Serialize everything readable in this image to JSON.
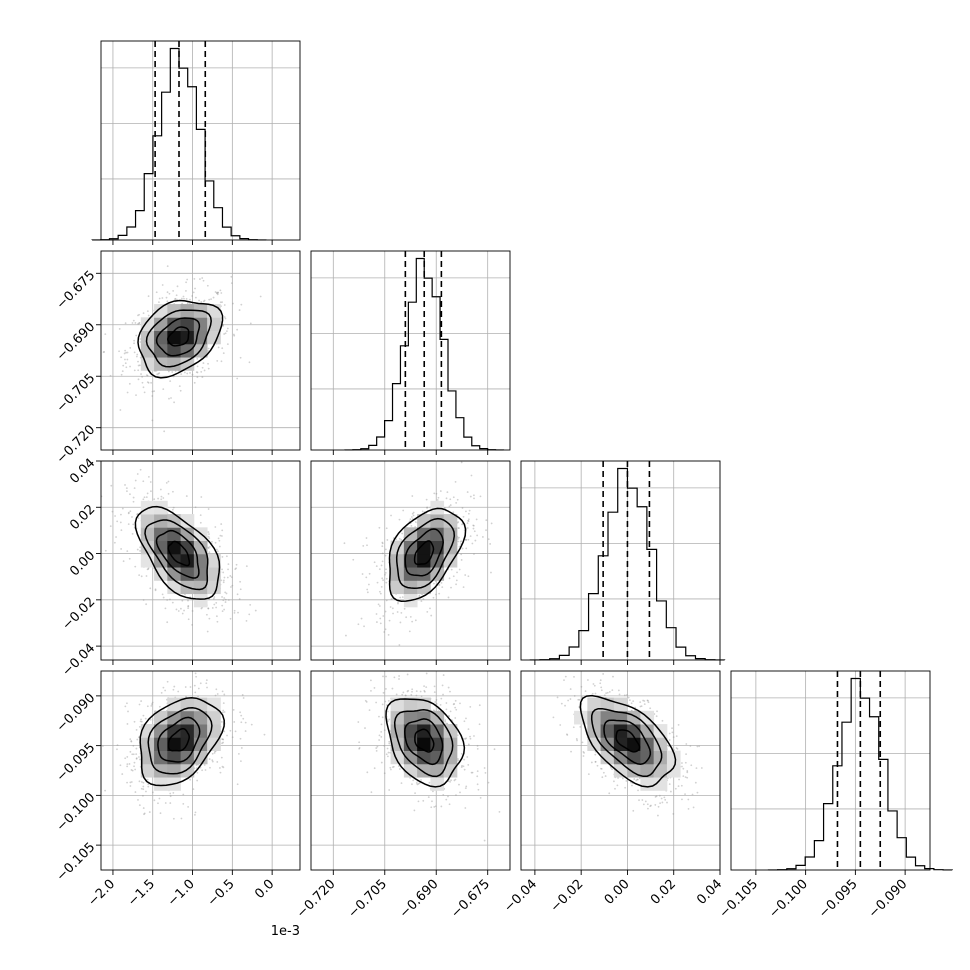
{
  "chart_data": {
    "type": "corner",
    "title": "",
    "offset_label": "1e-3",
    "grid": true,
    "parameters": [
      {
        "label": "",
        "range": [
          -2.15,
          0.35
        ],
        "ticks": [
          -2.0,
          -1.5,
          -1.0,
          -0.5,
          0.0
        ],
        "tick_labels": [
          "−2.0",
          "−1.5",
          "−1.0",
          "−0.5",
          "0.0"
        ],
        "mean": -1.17,
        "sd": 0.26,
        "quantiles": [
          -1.47,
          -1.17,
          -0.84
        ]
      },
      {
        "label": "",
        "range": [
          -0.7265,
          -0.6685
        ],
        "ticks": [
          -0.72,
          -0.705,
          -0.69,
          -0.675
        ],
        "tick_labels": [
          "−0.720",
          "−0.705",
          "−0.690",
          "−0.675"
        ],
        "mean": -0.6935,
        "sd": 0.0055,
        "quantiles": [
          -0.699,
          -0.6935,
          -0.6885
        ]
      },
      {
        "label": "",
        "range": [
          -0.046,
          0.04
        ],
        "ticks": [
          -0.04,
          -0.02,
          0.0,
          0.02,
          0.04
        ],
        "tick_labels": [
          "−0.04",
          "−0.02",
          "0.00",
          "0.02",
          "0.04"
        ],
        "mean": 0.0,
        "sd": 0.01,
        "quantiles": [
          -0.0105,
          0.0,
          0.0095
        ]
      },
      {
        "label": "",
        "range": [
          -0.1075,
          -0.0875
        ],
        "ticks": [
          -0.105,
          -0.1,
          -0.095,
          -0.09
        ],
        "tick_labels": [
          "−0.105",
          "−0.100",
          "−0.095",
          "−0.090"
        ],
        "mean": -0.0945,
        "sd": 0.0022,
        "quantiles": [
          -0.0968,
          -0.0945,
          -0.0925
        ]
      }
    ],
    "correlations": [
      [
        1.0,
        0.3,
        -0.55,
        0.35
      ],
      [
        0.3,
        1.0,
        0.45,
        -0.3
      ],
      [
        -0.55,
        0.45,
        1.0,
        -0.55
      ],
      [
        0.35,
        -0.3,
        -0.55,
        1.0
      ]
    ],
    "histogram_bins": 20,
    "contour_levels_sigma": [
      0.5,
      1.0,
      1.5,
      2.0
    ]
  }
}
